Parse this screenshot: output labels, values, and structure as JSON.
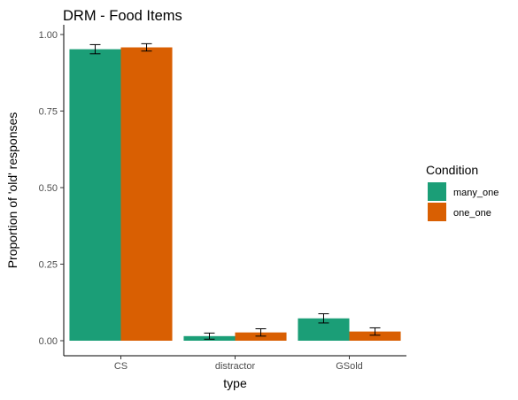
{
  "chart_data": {
    "type": "bar",
    "title": "DRM - Food Items",
    "xlabel": "type",
    "ylabel": "Proportion of 'old' responses",
    "categories": [
      "CS",
      "distractor",
      "GSold"
    ],
    "ylim": [
      0,
      1.04
    ],
    "yticks": [
      0.0,
      0.25,
      0.5,
      0.75,
      1.0
    ],
    "ytick_labels": [
      "0.00",
      "0.25",
      "0.50",
      "0.75",
      "1.00"
    ],
    "grid": false,
    "legend_position": "right",
    "legend_title": "Condition",
    "series": [
      {
        "name": "many_one",
        "color": "#1B9E77",
        "values": [
          0.952,
          0.015,
          0.073
        ],
        "err_low": [
          0.937,
          0.005,
          0.058
        ],
        "err_high": [
          0.967,
          0.025,
          0.088
        ]
      },
      {
        "name": "one_one",
        "color": "#D95F02",
        "values": [
          0.958,
          0.027,
          0.03
        ],
        "err_low": [
          0.946,
          0.015,
          0.018
        ],
        "err_high": [
          0.97,
          0.039,
          0.042
        ]
      }
    ]
  }
}
